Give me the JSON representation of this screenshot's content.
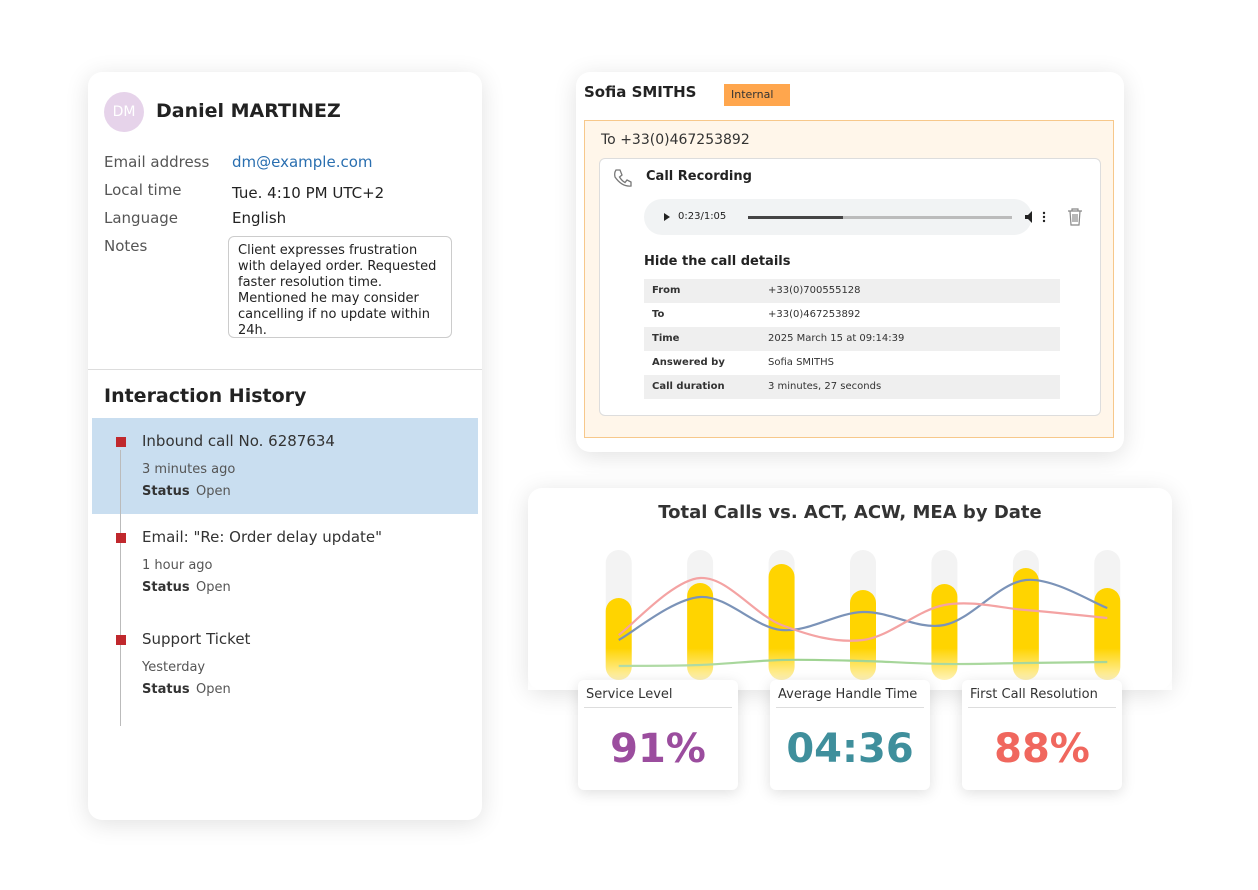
{
  "contact": {
    "initials": "DM",
    "name": "Daniel MARTINEZ",
    "fields": [
      {
        "label": "Email address",
        "value": "dm@example.com"
      },
      {
        "label": "Local time",
        "value": "Tue. 4:10 PM UTC+2"
      },
      {
        "label": "Language",
        "value": "English"
      }
    ],
    "notes_label": "Notes",
    "notes": "Client expresses frustration with delayed order. Requested faster resolution time. Mentioned he may consider cancelling if no update within 24h."
  },
  "history": {
    "title": "Interaction History",
    "items": [
      {
        "title": "Inbound call No. 6287634",
        "time": "3 minutes ago",
        "status_label": "Status",
        "status": "Open"
      },
      {
        "title": "Email: \"Re: Order delay update\"",
        "time": "1 hour ago",
        "status_label": "Status",
        "status": "Open"
      },
      {
        "title": "Support Ticket",
        "time": "Yesterday",
        "status_label": "Status",
        "status": "Open"
      }
    ]
  },
  "call": {
    "agent": "Sofia SMITHS",
    "tag": "Internal",
    "to": "To +33(0)467253892",
    "recording_title": "Call Recording",
    "player_time": "0:23/1:05",
    "details_toggle": "Hide the call details",
    "details": [
      [
        "From",
        "+33(0)700555128"
      ],
      [
        "To",
        "+33(0)467253892"
      ],
      [
        "Time",
        "2025 March 15 at 09:14:39"
      ],
      [
        "Answered by",
        "Sofia SMITHS"
      ],
      [
        "Call duration",
        "3 minutes, 27 seconds"
      ]
    ]
  },
  "chart_data": {
    "type": "bar",
    "title": "Total Calls vs. ACT, ACW, MEA by Date",
    "categories": [
      null,
      null,
      null,
      null,
      null,
      null,
      null
    ],
    "ylim": [
      0,
      130
    ],
    "series": [
      {
        "type": "bar",
        "color": "#ffd400",
        "values": [
          82,
          97,
          116,
          90,
          96,
          112,
          92
        ]
      },
      {
        "type": "line",
        "color": "#7b93b8",
        "values": [
          40,
          83,
          50,
          68,
          55,
          100,
          72
        ]
      },
      {
        "type": "line",
        "color": "#f4a3a3",
        "values": [
          45,
          102,
          55,
          40,
          75,
          70,
          62
        ]
      },
      {
        "type": "line",
        "color": "#7cc36a",
        "values": [
          14,
          15,
          20,
          19,
          16,
          17,
          18
        ]
      }
    ]
  },
  "kpis": [
    {
      "label": "Service Level",
      "value": "91%",
      "color": "#9b4d9e"
    },
    {
      "label": "Average Handle Time",
      "value": "04:36",
      "color": "#3f8f9c"
    },
    {
      "label": "First Call Resolution",
      "value": "88%",
      "color": "#f0675e"
    }
  ]
}
